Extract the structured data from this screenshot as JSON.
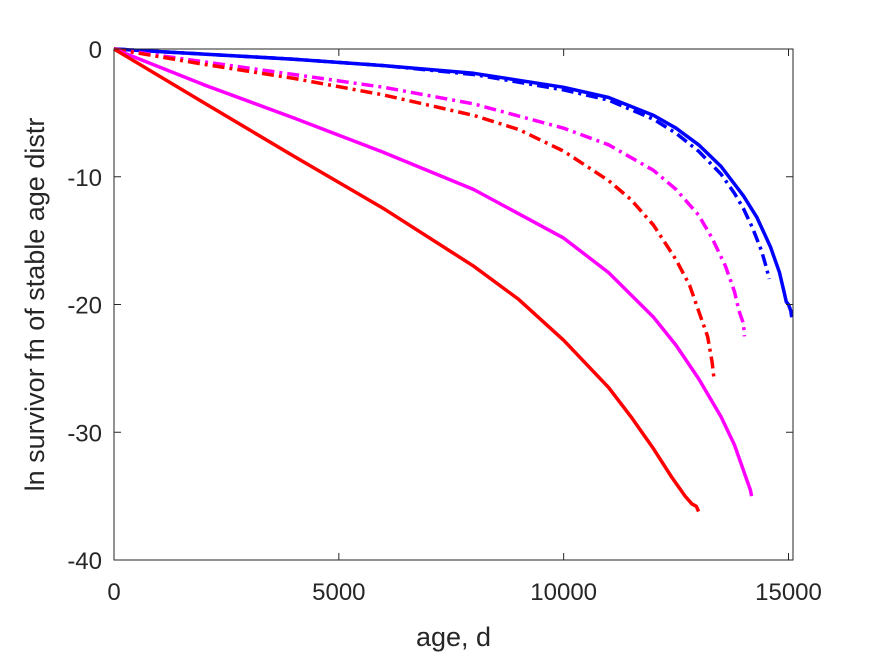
{
  "chart_data": {
    "type": "line",
    "title": "",
    "xlabel": "age, d",
    "ylabel": "ln survivor fn of stable age distr",
    "xlim": [
      0,
      15100
    ],
    "ylim": [
      -40,
      0
    ],
    "xticks": [
      0,
      5000,
      10000,
      15000
    ],
    "xtick_labels": [
      "0",
      "5000",
      "10000",
      "15000"
    ],
    "yticks": [
      0,
      -10,
      -20,
      -30,
      -40
    ],
    "ytick_labels": [
      "0",
      "-10",
      "-20",
      "-30",
      "-40"
    ],
    "grid": false,
    "legend": "none",
    "series": [
      {
        "color": "#0000ff",
        "style": "solid",
        "x": [
          0,
          2000,
          4000,
          6000,
          8000,
          10000,
          11000,
          12000,
          12500,
          13000,
          13500,
          14000,
          14300,
          14600,
          14800,
          14900,
          14950,
          15000,
          15050,
          15070
        ],
        "y": [
          0,
          -0.4,
          -0.8,
          -1.3,
          -1.9,
          -3.0,
          -3.8,
          -5.2,
          -6.2,
          -7.5,
          -9.2,
          -11.5,
          -13.2,
          -15.5,
          -17.5,
          -19.0,
          -19.8,
          -20.0,
          -20.5,
          -21.0
        ]
      },
      {
        "color": "#0000ff",
        "style": "dashdot",
        "x": [
          0,
          2000,
          4000,
          6000,
          8000,
          10000,
          11000,
          12000,
          12500,
          13000,
          13500,
          13800,
          14000,
          14200,
          14400,
          14500,
          14570
        ],
        "y": [
          0,
          -0.4,
          -0.8,
          -1.3,
          -2.0,
          -3.2,
          -4.0,
          -5.5,
          -6.6,
          -8.0,
          -9.8,
          -11.3,
          -12.5,
          -14.0,
          -15.8,
          -17.0,
          -18.0
        ]
      },
      {
        "color": "#ff00ff",
        "style": "dashdot",
        "x": [
          0,
          2000,
          4000,
          6000,
          8000,
          10000,
          11000,
          12000,
          12500,
          13000,
          13300,
          13600,
          13800,
          13900,
          14000,
          14020
        ],
        "y": [
          0,
          -1.0,
          -2.0,
          -3.0,
          -4.3,
          -6.2,
          -7.5,
          -9.5,
          -11.0,
          -13.0,
          -14.8,
          -17.0,
          -19.0,
          -20.5,
          -21.5,
          -22.5
        ]
      },
      {
        "color": "#ff0000",
        "style": "dashdot",
        "x": [
          0,
          2000,
          4000,
          6000,
          8000,
          9000,
          10000,
          11000,
          11500,
          12000,
          12500,
          12800,
          13000,
          13200,
          13300,
          13350
        ],
        "y": [
          0,
          -1.2,
          -2.3,
          -3.6,
          -5.2,
          -6.3,
          -8.0,
          -10.3,
          -11.8,
          -13.8,
          -16.5,
          -18.5,
          -20.5,
          -22.5,
          -24.5,
          -26.0
        ]
      },
      {
        "color": "#ff00ff",
        "style": "solid",
        "x": [
          0,
          2000,
          4000,
          6000,
          8000,
          10000,
          11000,
          12000,
          12500,
          13000,
          13500,
          13800,
          14000,
          14100,
          14150,
          14180
        ],
        "y": [
          0,
          -2.8,
          -5.4,
          -8.1,
          -11.0,
          -14.8,
          -17.5,
          -21.0,
          -23.2,
          -25.8,
          -28.8,
          -31.0,
          -33.0,
          -34.0,
          -34.5,
          -35.0
        ]
      },
      {
        "color": "#ff0000",
        "style": "solid",
        "x": [
          0,
          2000,
          4000,
          6000,
          8000,
          9000,
          10000,
          11000,
          11500,
          12000,
          12400,
          12700,
          12850,
          12950,
          13000
        ],
        "y": [
          0,
          -4.2,
          -8.4,
          -12.5,
          -17.0,
          -19.6,
          -22.8,
          -26.5,
          -28.8,
          -31.3,
          -33.5,
          -35.0,
          -35.6,
          -35.8,
          -36.2
        ]
      }
    ]
  }
}
